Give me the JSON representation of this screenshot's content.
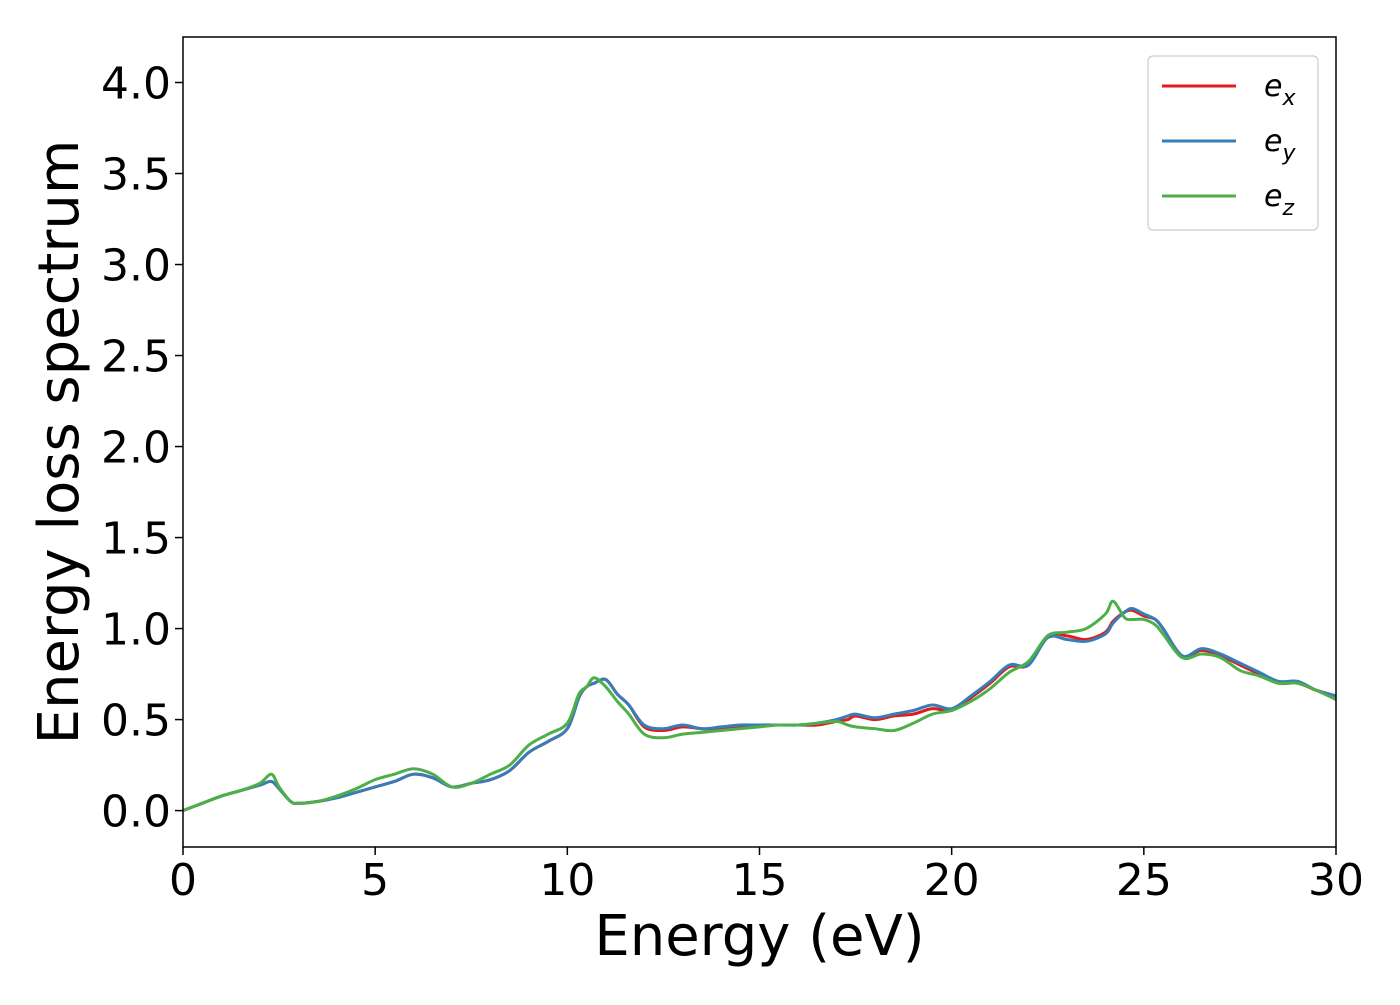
{
  "chart_data": {
    "type": "line",
    "xlabel": "Energy (eV)",
    "ylabel": "Energy loss spectrum",
    "xlim": [
      0,
      30
    ],
    "ylim": [
      -0.2,
      4.25
    ],
    "xticks": [
      "0",
      "5",
      "10",
      "15",
      "20",
      "25",
      "30"
    ],
    "yticks": [
      "0.0",
      "0.5",
      "1.0",
      "1.5",
      "2.0",
      "2.5",
      "3.0",
      "3.5",
      "4.0"
    ],
    "grid": false,
    "legend_position": "top-right",
    "x": [
      0,
      0.5,
      1,
      1.5,
      2,
      2.3,
      2.5,
      2.8,
      3,
      3.5,
      4,
      4.5,
      5,
      5.5,
      6,
      6.5,
      7,
      7.5,
      8,
      8.5,
      9,
      9.5,
      10,
      10.3,
      10.5,
      10.7,
      11,
      11.3,
      11.6,
      12,
      12.5,
      13,
      13.5,
      14,
      14.5,
      15,
      15.5,
      16,
      16.5,
      17,
      17.3,
      17.5,
      18,
      18.5,
      19,
      19.5,
      20,
      20.5,
      21,
      21.5,
      22,
      22.5,
      23,
      23.5,
      24,
      24.2,
      24.5,
      24.7,
      25,
      25.3,
      25.5,
      26,
      26.5,
      27,
      27.5,
      28,
      28.5,
      29,
      29.5,
      30
    ],
    "series": [
      {
        "name": "e_x",
        "label_base": "e",
        "label_sub": "x",
        "color": "#e41a1c",
        "values": [
          0.0,
          0.04,
          0.08,
          0.11,
          0.14,
          0.16,
          0.12,
          0.05,
          0.04,
          0.05,
          0.07,
          0.1,
          0.13,
          0.16,
          0.2,
          0.18,
          0.13,
          0.15,
          0.17,
          0.22,
          0.32,
          0.38,
          0.45,
          0.62,
          0.68,
          0.7,
          0.72,
          0.64,
          0.58,
          0.46,
          0.44,
          0.46,
          0.45,
          0.45,
          0.46,
          0.47,
          0.47,
          0.47,
          0.47,
          0.49,
          0.5,
          0.52,
          0.5,
          0.52,
          0.53,
          0.56,
          0.55,
          0.62,
          0.7,
          0.79,
          0.8,
          0.96,
          0.96,
          0.94,
          0.98,
          1.04,
          1.09,
          1.1,
          1.07,
          1.05,
          1.0,
          0.85,
          0.88,
          0.85,
          0.8,
          0.75,
          0.7,
          0.7,
          0.66,
          0.63
        ]
      },
      {
        "name": "e_y",
        "label_base": "e",
        "label_sub": "y",
        "color": "#377eb8",
        "values": [
          0.0,
          0.04,
          0.08,
          0.11,
          0.14,
          0.16,
          0.12,
          0.05,
          0.04,
          0.05,
          0.07,
          0.1,
          0.13,
          0.16,
          0.2,
          0.18,
          0.13,
          0.15,
          0.17,
          0.22,
          0.32,
          0.38,
          0.45,
          0.62,
          0.68,
          0.7,
          0.72,
          0.64,
          0.58,
          0.47,
          0.45,
          0.47,
          0.45,
          0.46,
          0.47,
          0.47,
          0.47,
          0.47,
          0.48,
          0.5,
          0.52,
          0.53,
          0.51,
          0.53,
          0.55,
          0.58,
          0.56,
          0.63,
          0.71,
          0.8,
          0.8,
          0.95,
          0.94,
          0.93,
          0.97,
          1.03,
          1.09,
          1.11,
          1.08,
          1.05,
          1.0,
          0.85,
          0.89,
          0.86,
          0.81,
          0.76,
          0.71,
          0.71,
          0.66,
          0.63
        ]
      },
      {
        "name": "e_z",
        "label_base": "e",
        "label_sub": "z",
        "color": "#4daf4a",
        "values": [
          0.0,
          0.04,
          0.08,
          0.11,
          0.15,
          0.2,
          0.13,
          0.05,
          0.04,
          0.05,
          0.08,
          0.12,
          0.17,
          0.2,
          0.23,
          0.2,
          0.13,
          0.15,
          0.2,
          0.25,
          0.36,
          0.42,
          0.48,
          0.64,
          0.68,
          0.73,
          0.68,
          0.6,
          0.53,
          0.42,
          0.4,
          0.42,
          0.43,
          0.44,
          0.45,
          0.46,
          0.47,
          0.47,
          0.48,
          0.49,
          0.47,
          0.46,
          0.45,
          0.44,
          0.48,
          0.53,
          0.55,
          0.6,
          0.67,
          0.76,
          0.82,
          0.96,
          0.98,
          1.0,
          1.08,
          1.15,
          1.06,
          1.05,
          1.05,
          1.02,
          0.97,
          0.84,
          0.86,
          0.84,
          0.77,
          0.74,
          0.7,
          0.7,
          0.66,
          0.61
        ]
      }
    ]
  }
}
